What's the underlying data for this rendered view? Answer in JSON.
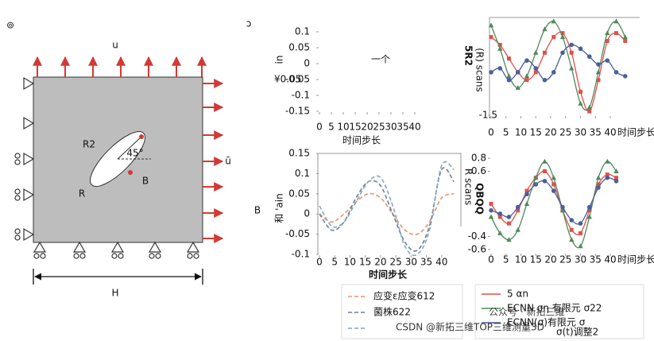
{
  "diagram": {
    "corner_mark": "⊚",
    "top_mark": "ɔ",
    "top_load": "u",
    "right_load": "ū",
    "width_label": "H",
    "radius_2": "R2",
    "radius": "R",
    "point": "B",
    "angle": "45°",
    "side_label": "B"
  },
  "chart_data": [
    {
      "type": "line",
      "ylabel": "in",
      "annotations": [
        "¥0.05",
        "一个"
      ],
      "xlabel": "时间步长",
      "xlim": [
        0,
        40
      ],
      "xticks": [
        0,
        5,
        10,
        15,
        20,
        25,
        30,
        35,
        40
      ],
      "ylim": [
        -0.15,
        0.1
      ],
      "yticks": [
        0.1,
        0.05,
        0.0,
        -0.05,
        -0.1,
        -0.15
      ],
      "series": []
    },
    {
      "type": "line",
      "ylabel": "和 'ain",
      "annotations": [
        "R scans"
      ],
      "xlabel": "时间步长",
      "dash": true,
      "xlim": [
        0,
        45
      ],
      "xticks": [
        0,
        5,
        10,
        15,
        20,
        25,
        30,
        35,
        40
      ],
      "ylim": [
        -0.1,
        0.15
      ],
      "yticks": [
        0.15,
        0.1,
        0.05,
        0.0,
        -0.05,
        -0.1
      ],
      "x": [
        0,
        4,
        8,
        12,
        16,
        20,
        24,
        28,
        32,
        36,
        40,
        44
      ],
      "series": [
        {
          "name": "应变ε应变612",
          "color": "#e8956a",
          "values": [
            0,
            -0.02,
            0.0,
            0.03,
            0.05,
            0.04,
            0.0,
            -0.04,
            -0.05,
            -0.02,
            0.04,
            0.05
          ]
        },
        {
          "name": "菌株622",
          "color": "#6e8090",
          "values": [
            0,
            -0.04,
            -0.02,
            0.04,
            0.08,
            0.07,
            0.0,
            -0.07,
            -0.09,
            -0.03,
            0.11,
            0.08
          ]
        },
        {
          "name": null,
          "color": "#7fa9c2",
          "values": [
            0.02,
            -0.03,
            -0.02,
            0.03,
            0.08,
            0.09,
            0.02,
            -0.08,
            -0.1,
            -0.04,
            0.12,
            0.11
          ]
        }
      ]
    },
    {
      "type": "line",
      "annotations": [
        "5R2",
        "(R) scans"
      ],
      "xlabel": "时间步长",
      "xlim": [
        0,
        48
      ],
      "xticks": [
        0,
        5,
        10,
        15,
        20,
        25,
        30,
        35,
        40
      ],
      "ylim": [
        -1.5,
        1.0
      ],
      "yticks": [
        -1.5
      ],
      "x": [
        0,
        3,
        6,
        9,
        12,
        15,
        18,
        21,
        24,
        27,
        30,
        33,
        36,
        39,
        42,
        45
      ],
      "series": [
        {
          "name": "5 αn",
          "color": "#e0504a",
          "marker": "square",
          "values": [
            0.5,
            0.3,
            -0.05,
            -0.4,
            -0.6,
            -0.4,
            0.1,
            0.5,
            0.6,
            0.1,
            -0.9,
            -1.4,
            -0.6,
            0.4,
            0.6,
            0.4
          ]
        },
        {
          "name": "ECNN ση 有限元 σ22",
          "color": "#4f8a5a",
          "marker": "triangle",
          "values": [
            0.8,
            0.2,
            -0.5,
            -0.8,
            -0.5,
            0.1,
            0.7,
            0.9,
            0.5,
            -0.3,
            -1.2,
            -1.3,
            -0.4,
            0.6,
            0.9,
            0.5
          ]
        },
        {
          "name": "ECNN(σ)有限元 σ",
          "color": "#4a5f9a",
          "marker": "circle",
          "values": [
            -0.4,
            -0.3,
            -0.6,
            -0.4,
            -0.1,
            -0.3,
            -0.6,
            -0.4,
            0.1,
            0.3,
            0.2,
            0.0,
            -0.2,
            -0.1,
            -0.4,
            -0.5
          ]
        }
      ]
    },
    {
      "type": "line",
      "annotations": [
        "QBQQ"
      ],
      "xlabel": "时间步长",
      "xlim": [
        0,
        48
      ],
      "xticks": [
        0,
        5,
        10,
        15,
        20,
        25,
        30,
        35,
        40
      ],
      "ylim": [
        -0.65,
        0.85
      ],
      "yticks": [
        0.8,
        0.6,
        -0.4,
        -0.6
      ],
      "x": [
        0,
        3,
        6,
        9,
        12,
        15,
        18,
        21,
        24,
        27,
        30,
        33,
        36,
        39,
        42
      ],
      "series": [
        {
          "color": "#e0504a",
          "marker": "square",
          "values": [
            0.1,
            -0.1,
            -0.2,
            0.0,
            0.3,
            0.5,
            0.6,
            0.4,
            0.0,
            -0.3,
            -0.35,
            0.0,
            0.4,
            0.55,
            0.5
          ]
        },
        {
          "color": "#4f8a5a",
          "marker": "triangle",
          "values": [
            -0.1,
            -0.35,
            -0.45,
            -0.3,
            0.1,
            0.5,
            0.75,
            0.5,
            0.0,
            -0.45,
            -0.55,
            -0.1,
            0.5,
            0.75,
            0.6
          ]
        },
        {
          "color": "#4a5f9a",
          "marker": "circle",
          "values": [
            0.0,
            -0.05,
            -0.1,
            0.05,
            0.25,
            0.4,
            0.45,
            0.3,
            0.05,
            -0.15,
            -0.2,
            0.05,
            0.35,
            0.5,
            0.45
          ]
        }
      ]
    }
  ],
  "legend_extra": "σ(t)调整2",
  "watermarks": [
    "公众号 · 新拓三维",
    "CSDN @新拓三维TOP三维测量3D"
  ]
}
